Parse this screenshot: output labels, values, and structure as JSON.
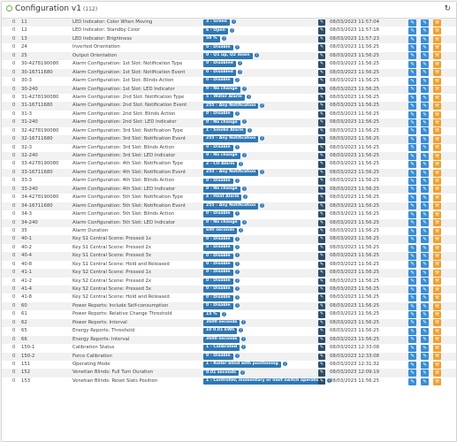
{
  "header": {
    "title": "Configuration v1",
    "count": "(112)"
  },
  "rows": [
    {
      "n": "0",
      "id": "11",
      "name": "LED Indicator: Color When Moving",
      "value": "3 - Green",
      "q": true,
      "date": "08/03/2023 11:57:04"
    },
    {
      "n": "0",
      "id": "12",
      "name": "LED Indicator: Standby Color",
      "value": "6 - Open",
      "q": true,
      "date": "08/03/2023 11:57:16"
    },
    {
      "n": "0",
      "id": "13",
      "name": "LED Indicator: Brightness",
      "value": "50 %",
      "q": true,
      "date": "08/03/2023 11:57:23"
    },
    {
      "n": "0",
      "id": "24",
      "name": "Inverted Orientation",
      "value": "0 - Disable",
      "q": true,
      "date": "08/03/2023 11:56:25"
    },
    {
      "n": "0",
      "id": "25",
      "name": "Output Orientation",
      "value": "0 - Q1 up, Q2 down",
      "q": true,
      "date": "08/03/2023 11:56:25"
    },
    {
      "n": "0",
      "id": "30-4278190080",
      "name": "Alarm Configuration: 1st Slot: Notification Type",
      "value": "0 - Disabled",
      "q": true,
      "date": "08/03/2023 11:56:25"
    },
    {
      "n": "0",
      "id": "30-16711680",
      "name": "Alarm Configuration: 1st Slot: Notification Event",
      "value": "0 - Disabled",
      "q": true,
      "date": "08/03/2023 11:56:25"
    },
    {
      "n": "0",
      "id": "30-3",
      "name": "Alarm Configuration: 1st Slot: Blinds Action",
      "value": "0 - Disable",
      "q": true,
      "date": "08/03/2023 11:56:25"
    },
    {
      "n": "0",
      "id": "30-240",
      "name": "Alarm Configuration: 1st Slot: LED Indicator",
      "value": "0 - No change",
      "q": true,
      "date": "08/03/2023 11:56:25"
    },
    {
      "n": "0",
      "id": "31-4278190080",
      "name": "Alarm Configuration: 2nd Slot: Notification Type",
      "value": "5 - Water Alarm",
      "q": true,
      "date": "08/03/2023 11:56:25"
    },
    {
      "n": "0",
      "id": "31-16711680",
      "name": "Alarm Configuration: 2nd Slot: Notification Event",
      "value": "255 - Any Notification",
      "q": true,
      "date": "08/03/2023 11:56:25"
    },
    {
      "n": "0",
      "id": "31-3",
      "name": "Alarm Configuration: 2nd Slot: Blinds Action",
      "value": "0 - Disable",
      "q": true,
      "date": "08/03/2023 11:56:25"
    },
    {
      "n": "0",
      "id": "31-240",
      "name": "Alarm Configuration: 2nd Slot: LED Indicator",
      "value": "0 - No change",
      "q": true,
      "date": "08/03/2023 11:56:25"
    },
    {
      "n": "0",
      "id": "32-4278190080",
      "name": "Alarm Configuration: 3rd Slot: Notification Type",
      "value": "1 - Smoke Alarm",
      "q": true,
      "date": "08/03/2023 11:56:25"
    },
    {
      "n": "0",
      "id": "32-16711680",
      "name": "Alarm Configuration: 3rd Slot: Notification Event",
      "value": "255 - Any Notification",
      "q": true,
      "date": "08/03/2023 11:56:25"
    },
    {
      "n": "0",
      "id": "32-3",
      "name": "Alarm Configuration: 3rd Slot: Blinds Action",
      "value": "0 - Disable",
      "q": true,
      "date": "08/03/2023 11:56:25"
    },
    {
      "n": "0",
      "id": "32-240",
      "name": "Alarm Configuration: 3rd Slot: LED Indicator",
      "value": "0 - No change",
      "q": true,
      "date": "08/03/2023 11:56:25"
    },
    {
      "n": "0",
      "id": "33-4278190080",
      "name": "Alarm Configuration: 4th Slot: Notification Type",
      "value": "2 - CO Alarm",
      "q": true,
      "date": "08/03/2023 11:56:25"
    },
    {
      "n": "0",
      "id": "33-16711680",
      "name": "Alarm Configuration: 4th Slot: Notification Event",
      "value": "255 - Any Notification",
      "q": true,
      "date": "08/03/2023 11:56:25"
    },
    {
      "n": "0",
      "id": "33-3",
      "name": "Alarm Configuration: 4th Slot: Blinds Action",
      "value": "0 - Disable",
      "q": true,
      "date": "08/03/2023 11:56:25"
    },
    {
      "n": "0",
      "id": "33-240",
      "name": "Alarm Configuration: 4th Slot: LED Indicator",
      "value": "0 - No change",
      "q": true,
      "date": "08/03/2023 11:56:25"
    },
    {
      "n": "0",
      "id": "34-4278190080",
      "name": "Alarm Configuration: 5th Slot: Notification Type",
      "value": "4 - Heat Alarm",
      "q": true,
      "date": "08/03/2023 11:56:25"
    },
    {
      "n": "0",
      "id": "34-16711680",
      "name": "Alarm Configuration: 5th Slot: Notification Event",
      "value": "255 - Any Notification",
      "q": true,
      "date": "08/03/2023 11:56:25"
    },
    {
      "n": "0",
      "id": "34-3",
      "name": "Alarm Configuration: 5th Slot: Blinds Action",
      "value": "0 - Disable",
      "q": true,
      "date": "08/03/2023 11:56:25"
    },
    {
      "n": "0",
      "id": "34-240",
      "name": "Alarm Configuration: 5th Slot: LED Indicator",
      "value": "0 - No change",
      "q": true,
      "date": "08/03/2023 11:56:25"
    },
    {
      "n": "0",
      "id": "35",
      "name": "Alarm Duration",
      "value": "600 seconds",
      "q": true,
      "date": "08/03/2023 11:56:25"
    },
    {
      "n": "0",
      "id": "40-1",
      "name": "Key S1 Central Scene: Pressed 1x",
      "value": "0 - Disable",
      "q": true,
      "date": "08/03/2023 11:56:25"
    },
    {
      "n": "0",
      "id": "40-2",
      "name": "Key S1 Central Scene: Pressed 2x",
      "value": "0 - Disable",
      "q": true,
      "date": "08/03/2023 11:56:25"
    },
    {
      "n": "0",
      "id": "40-4",
      "name": "Key S1 Central Scene: Pressed 3x",
      "value": "0 - Disable",
      "q": true,
      "date": "08/03/2023 11:56:25"
    },
    {
      "n": "0",
      "id": "40-8",
      "name": "Key S1 Central Scene: Hold and Released",
      "value": "0 - Disable",
      "q": true,
      "date": "08/03/2023 11:56:25"
    },
    {
      "n": "0",
      "id": "41-1",
      "name": "Key S2 Central Scene: Pressed 1x",
      "value": "0 - Disable",
      "q": true,
      "date": "08/03/2023 11:56:25"
    },
    {
      "n": "0",
      "id": "41-2",
      "name": "Key S2 Central Scene: Pressed 2x",
      "value": "0 - Disable",
      "q": true,
      "date": "08/03/2023 11:56:25"
    },
    {
      "n": "0",
      "id": "41-4",
      "name": "Key S2 Central Scene: Pressed 3x",
      "value": "0 - Disable",
      "q": true,
      "date": "08/03/2023 11:56:25"
    },
    {
      "n": "0",
      "id": "41-8",
      "name": "Key S2 Central Scene: Hold and Released",
      "value": "0 - Disable",
      "q": true,
      "date": "08/03/2023 11:56:25"
    },
    {
      "n": "0",
      "id": "60",
      "name": "Power Reports: Include Self-consumption",
      "value": "0 - Disable",
      "q": true,
      "date": "08/03/2023 11:56:25"
    },
    {
      "n": "0",
      "id": "61",
      "name": "Power Reports: Relative Change Threshold",
      "value": "15 %",
      "q": true,
      "date": "08/03/2023 11:56:25"
    },
    {
      "n": "0",
      "id": "62",
      "name": "Power Reports: Interval",
      "value": "3600 seconds",
      "q": true,
      "date": "08/03/2023 11:56:25"
    },
    {
      "n": "0",
      "id": "65",
      "name": "Energy Reports: Threshold",
      "value": "10 0.01 kWh",
      "q": true,
      "date": "08/03/2023 11:56:25"
    },
    {
      "n": "0",
      "id": "66",
      "name": "Energy Reports: Interval",
      "value": "3600 seconds",
      "q": true,
      "date": "08/03/2023 11:56:25"
    },
    {
      "n": "0",
      "id": "150-1",
      "name": "Calibration Status",
      "value": "1 - Calibrated",
      "q": true,
      "date": "08/03/2023 12:33:08"
    },
    {
      "n": "0",
      "id": "150-2",
      "name": "Force Calibration",
      "value": "0 - Disable",
      "q": true,
      "date": "08/03/2023 12:33:08"
    },
    {
      "n": "0",
      "id": "151",
      "name": "Operating Mode",
      "value": "1 - Roller blind with positioning",
      "q": true,
      "date": "08/03/2023 12:31:32"
    },
    {
      "n": "0",
      "id": "152",
      "name": "Venetian Blinds: Full Turn Duration",
      "value": "0.01 seconds",
      "q": true,
      "date": "08/03/2023 12:09:19"
    },
    {
      "n": "0",
      "id": "153",
      "name": "Venetian Blinds: Reset Slats Position",
      "value": "1 - Controller, momentary or limit switch operation",
      "q": true,
      "date": "08/03/2023 11:56:25"
    }
  ]
}
